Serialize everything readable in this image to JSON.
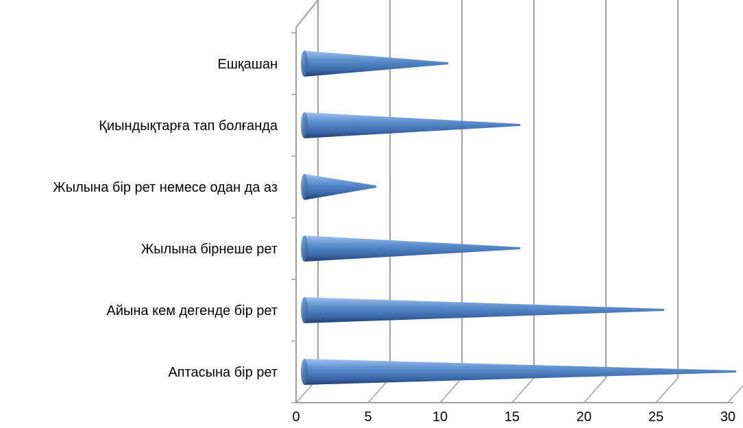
{
  "chart_data": {
    "type": "bar",
    "orientation": "horizontal",
    "style": "3d-cone",
    "categories": [
      "Аптасына бір рет",
      "Айына кем дегенде бір рет",
      "Жылына бірнеше рет",
      "Жылына бір рет немесе одан да аз",
      "Қиындықтарға тап болғанда",
      "Ешқашан"
    ],
    "values": [
      30,
      25,
      15,
      5,
      15,
      10
    ],
    "xlim": [
      0,
      30
    ],
    "x_ticks": [
      "0",
      "5",
      "10",
      "15",
      "20",
      "25",
      "30"
    ],
    "grid": true,
    "legend": "none",
    "colors": {
      "bar_light": "#9ec3f0",
      "bar_mid": "#4f81bd",
      "bar_dark": "#1f3f6e",
      "grid": "#a0a0a0"
    }
  }
}
